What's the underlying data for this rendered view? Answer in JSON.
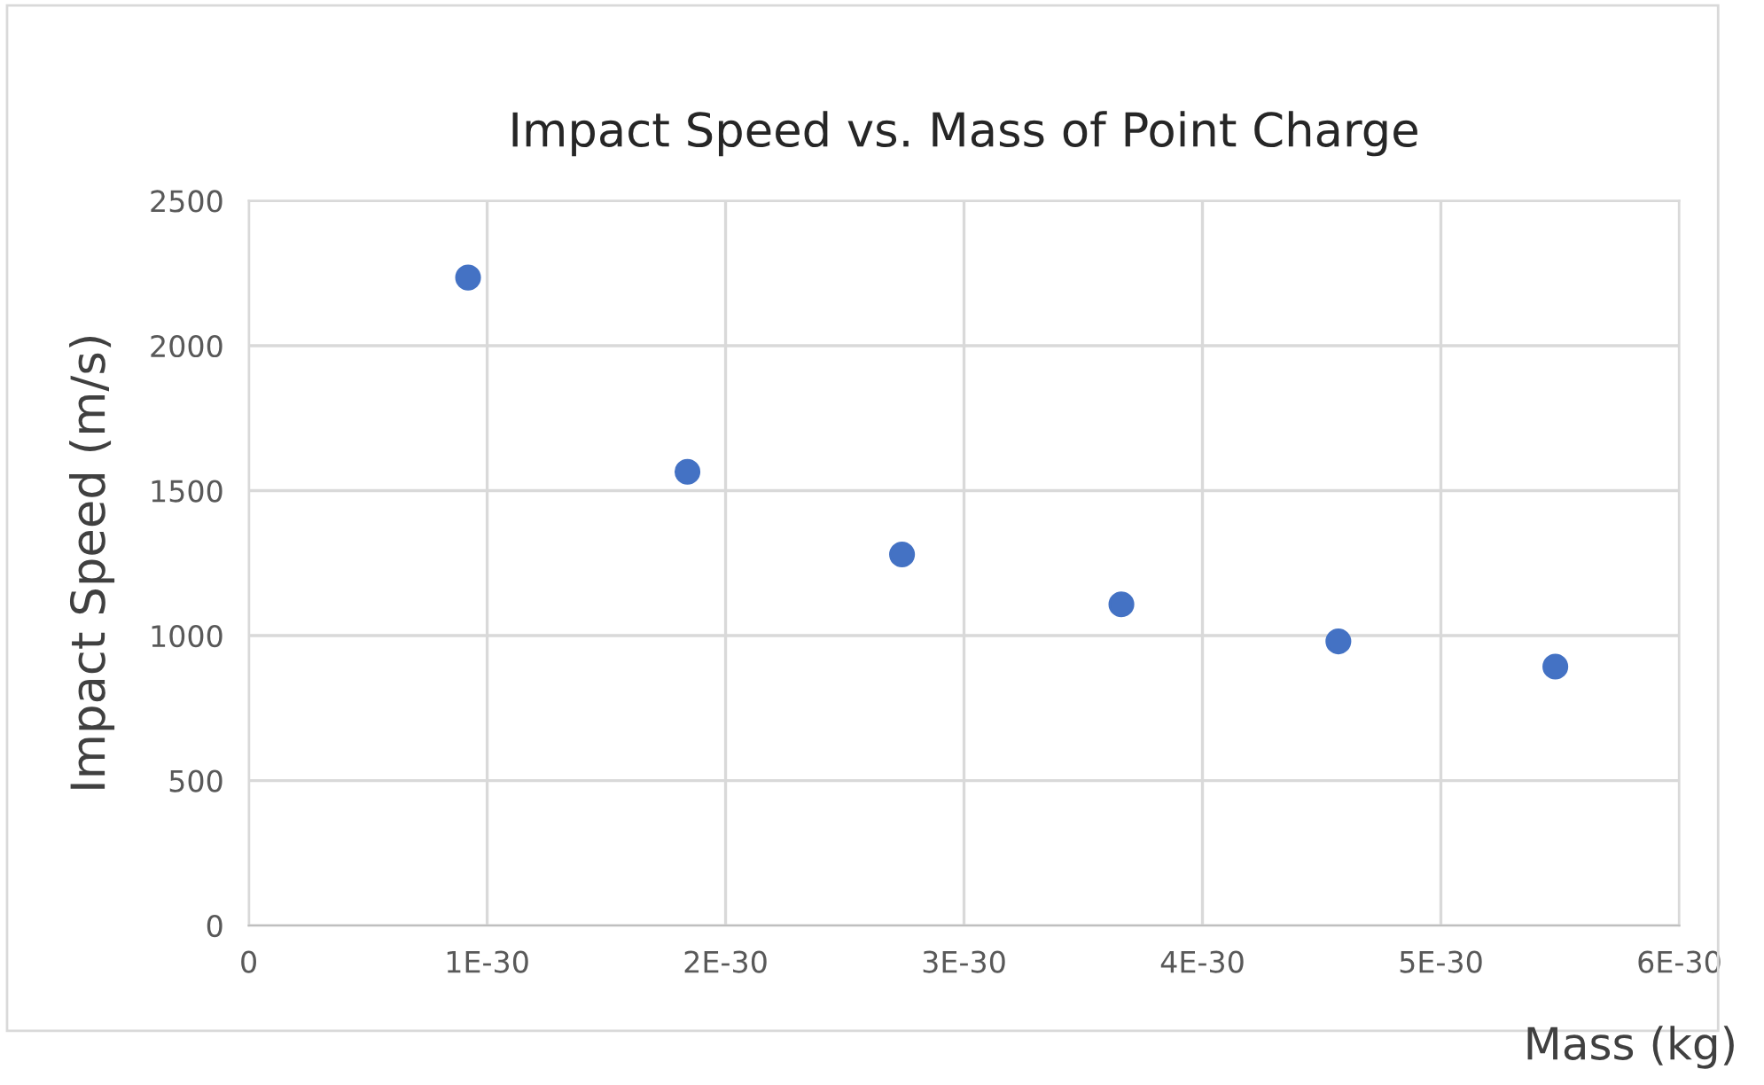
{
  "chart_data": {
    "type": "scatter",
    "title": "Impact Speed vs. Mass of Point Charge",
    "xlabel": "Mass (kg)",
    "ylabel": "Impact Speed (m/s)",
    "x": [
      9.2e-31,
      1.84e-30,
      2.74e-30,
      3.66e-30,
      4.57e-30,
      5.48e-30
    ],
    "series": [
      {
        "color": "#4472c4",
        "values": [
          2235,
          1565,
          1280,
          1108,
          980,
          893
        ]
      }
    ],
    "xlim": [
      0,
      6e-30
    ],
    "xticks": [
      0,
      {
        "value": 1e-30,
        "label": "1E-30"
      },
      {
        "value": 2e-30,
        "label": "2E-30"
      },
      {
        "value": 3e-30,
        "label": "3E-30"
      },
      {
        "value": 4e-30,
        "label": "4E-30"
      },
      {
        "value": 5e-30,
        "label": "5E-30"
      },
      {
        "value": 6e-30,
        "label": "6E-30"
      }
    ],
    "ylim": [
      0,
      2500
    ],
    "yticks": [
      0,
      500,
      1000,
      1500,
      2000,
      2500
    ],
    "grid": true,
    "marker": "circle"
  }
}
